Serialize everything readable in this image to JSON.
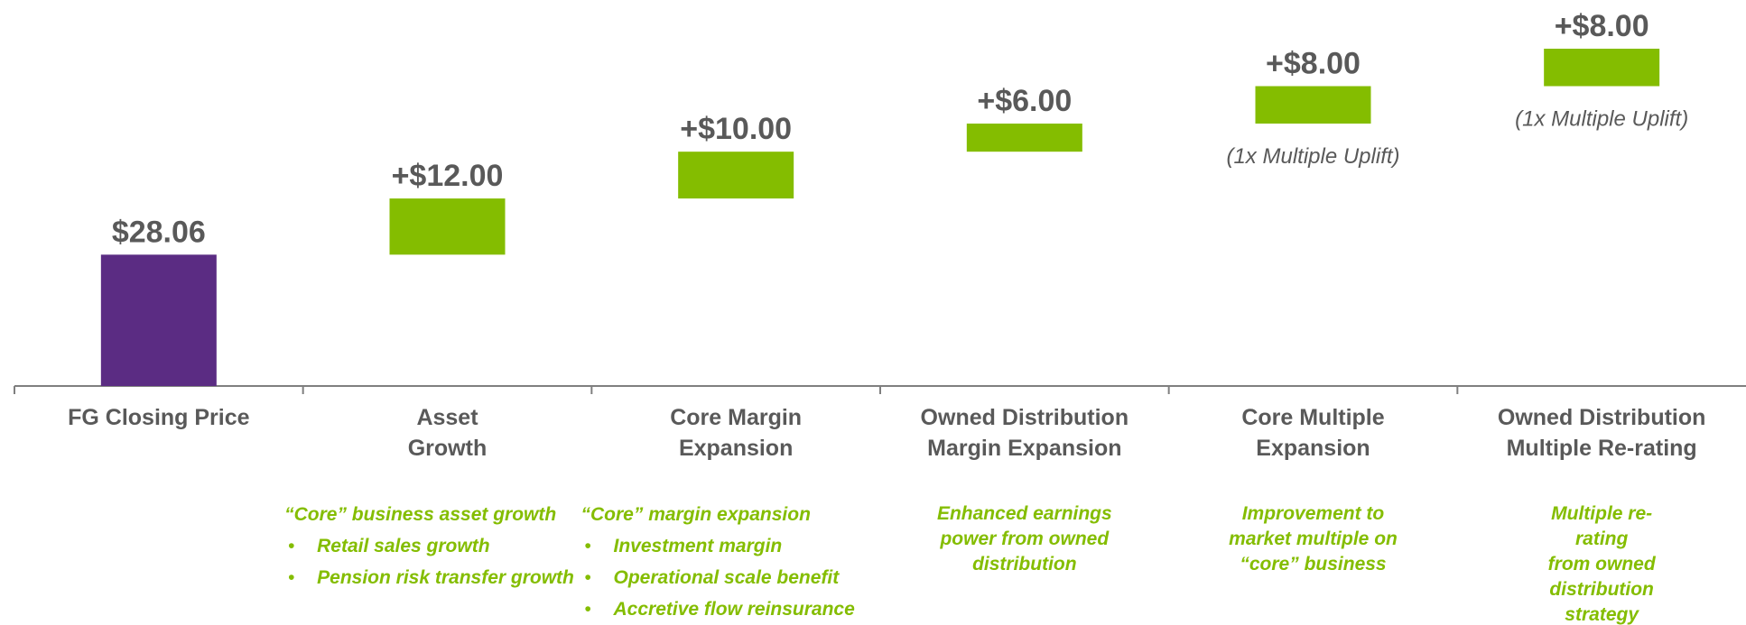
{
  "chart_data": {
    "type": "waterfall",
    "categories": [
      "FG Closing Price",
      "Asset\nGrowth",
      "Core Margin\nExpansion",
      "Owned Distribution\nMargin Expansion",
      "Core Multiple\nExpansion",
      "Owned Distribution\nMultiple Re-rating"
    ],
    "values": [
      28.06,
      12,
      10,
      6,
      8,
      8
    ],
    "value_labels": [
      "$28.06",
      "+$12.00",
      "+$10.00",
      "+$6.00",
      "+$8.00",
      "+$8.00"
    ],
    "colors": [
      "#5b2c83",
      "#84bd00",
      "#84bd00",
      "#84bd00",
      "#84bd00",
      "#84bd00"
    ],
    "sublabels": [
      null,
      null,
      null,
      null,
      "(1x Multiple Uplift)",
      "(1x Multiple Uplift)"
    ],
    "notes": [
      null,
      {
        "heading": "“Core” business asset growth",
        "bullets": [
          "Retail sales growth",
          "Pension risk transfer growth"
        ]
      },
      {
        "heading": "“Core” margin expansion",
        "bullets": [
          "Investment margin",
          "Operational scale benefit",
          "Accretive flow reinsurance"
        ]
      },
      {
        "text": "Enhanced earnings\npower from owned\ndistribution"
      },
      {
        "text": "Improvement to\nmarket multiple on\n“core” business"
      },
      {
        "text": "Multiple re-rating\nfrom owned\ndistribution strategy"
      }
    ]
  }
}
